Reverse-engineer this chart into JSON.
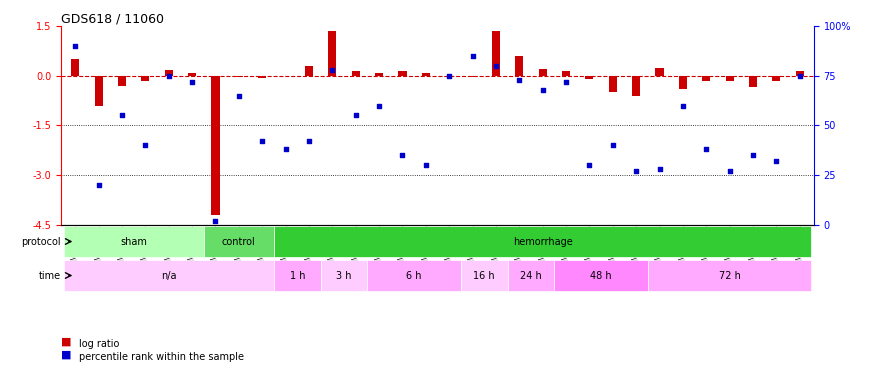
{
  "title": "GDS618 / 11060",
  "samples": [
    "GSM16636",
    "GSM16640",
    "GSM16641",
    "GSM16642",
    "GSM16643",
    "GSM16644",
    "GSM16637",
    "GSM16638",
    "GSM16639",
    "GSM16645",
    "GSM16646",
    "GSM16647",
    "GSM16648",
    "GSM16649",
    "GSM16650",
    "GSM16651",
    "GSM16652",
    "GSM16653",
    "GSM16654",
    "GSM16655",
    "GSM16656",
    "GSM16657",
    "GSM16658",
    "GSM16659",
    "GSM16660",
    "GSM16661",
    "GSM16662",
    "GSM16663",
    "GSM16664",
    "GSM16666",
    "GSM16667",
    "GSM16668"
  ],
  "log_ratio": [
    0.5,
    -0.9,
    -0.3,
    -0.15,
    0.18,
    0.08,
    -4.2,
    -0.05,
    -0.08,
    0.0,
    0.3,
    1.35,
    0.15,
    0.1,
    0.15,
    0.08,
    0.0,
    -0.05,
    1.35,
    0.6,
    0.2,
    0.15,
    -0.1,
    -0.5,
    -0.6,
    0.25,
    -0.4,
    -0.15,
    -0.15,
    -0.35,
    -0.15,
    0.15
  ],
  "pct_rank": [
    90,
    20,
    55,
    40,
    75,
    72,
    2,
    65,
    42,
    38,
    42,
    78,
    55,
    60,
    35,
    30,
    75,
    85,
    80,
    73,
    68,
    72,
    30,
    40,
    27,
    28,
    60,
    38,
    27,
    35,
    32,
    75
  ],
  "protocol_groups": [
    {
      "label": "sham",
      "start": 0,
      "end": 5,
      "color": "#b3ffb3"
    },
    {
      "label": "control",
      "start": 6,
      "end": 8,
      "color": "#66dd66"
    },
    {
      "label": "hemorrhage",
      "start": 9,
      "end": 31,
      "color": "#33cc33"
    }
  ],
  "time_groups": [
    {
      "label": "n/a",
      "start": 0,
      "end": 8,
      "color": "#ffccff"
    },
    {
      "label": "1 h",
      "start": 9,
      "end": 10,
      "color": "#ffaaff"
    },
    {
      "label": "3 h",
      "start": 11,
      "end": 12,
      "color": "#ffccff"
    },
    {
      "label": "6 h",
      "start": 13,
      "end": 16,
      "color": "#ffaaff"
    },
    {
      "label": "16 h",
      "start": 17,
      "end": 18,
      "color": "#ffccff"
    },
    {
      "label": "24 h",
      "start": 19,
      "end": 20,
      "color": "#ffaaff"
    },
    {
      "label": "48 h",
      "start": 21,
      "end": 24,
      "color": "#ff88ff"
    },
    {
      "label": "72 h",
      "start": 25,
      "end": 31,
      "color": "#ffaaff"
    }
  ],
  "ylim_left": [
    -4.5,
    1.5
  ],
  "ylim_right": [
    0,
    100
  ],
  "yticks_left": [
    -4.5,
    -3.0,
    -1.5,
    0.0,
    1.5
  ],
  "yticks_right": [
    0,
    25,
    50,
    75,
    100
  ],
  "hlines": [
    -1.5,
    -3.0
  ],
  "bar_color": "#cc0000",
  "dot_color": "#0000cc",
  "ref_line_color": "#cc0000"
}
